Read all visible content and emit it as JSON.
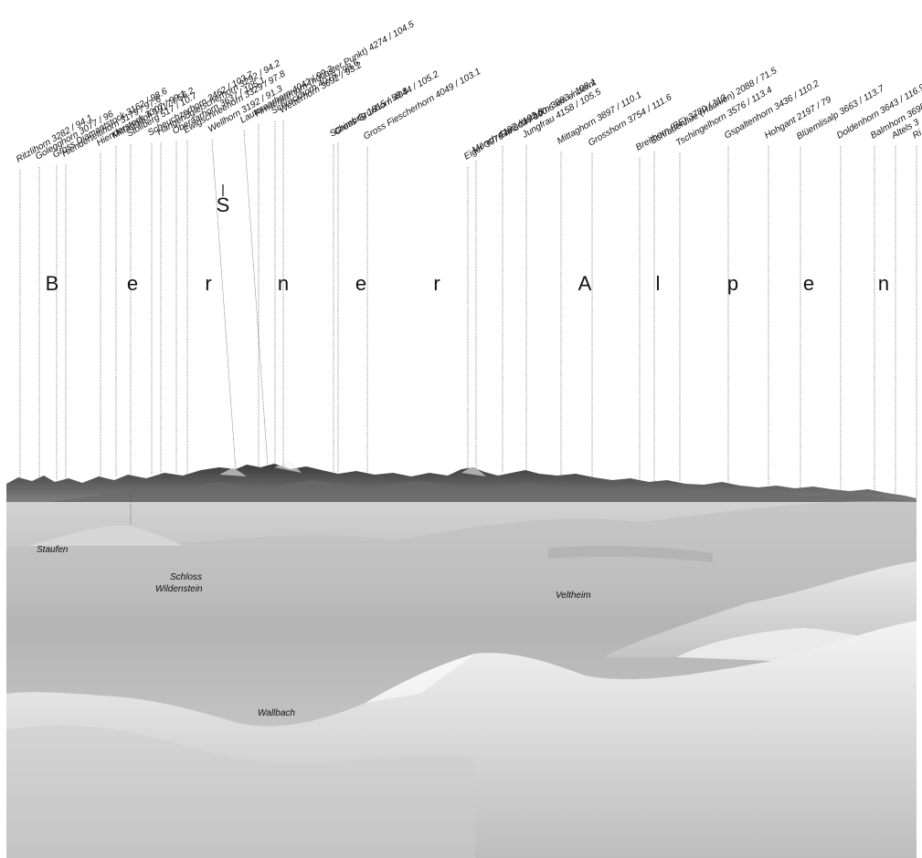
{
  "title_letters": [
    "B",
    "e",
    "r",
    "n",
    "e",
    "r",
    "A",
    "l",
    "p",
    "e",
    "n"
  ],
  "marker_letter": "S",
  "peaks": [
    {
      "name": "Ritzlihorn",
      "label": "Ritzlihorn  3282 / 94.1"
    },
    {
      "name": "Golegghorn",
      "label": "Golegghorn  3077 / 96"
    },
    {
      "name": "Gross Diamantstock",
      "label": "Gross Diamantstock  3162 / 98.6"
    },
    {
      "name": "Hienderteltihorn",
      "label": "Hienderteltihorn  3179 / 97.6"
    },
    {
      "name": "Hienderstock",
      "label": "Hienderstock  3307 / 99.1"
    },
    {
      "name": "Mittaggüpfi",
      "label": "Mittaggüpfi  1917 / 56.2"
    },
    {
      "name": "Stollberg",
      "label": "Stollberg  517 / 10.7"
    },
    {
      "name": "Scheuchzerhorn",
      "label": "Scheuchzerhorn  3462 / 103.7"
    },
    {
      "name": "Hangendgletscherhorn",
      "label": "Hangendgletscherhorn  3292 / 94.2"
    },
    {
      "name": "Oberaarhorn",
      "label": "Oberaarhorn  3637 / 105.1"
    },
    {
      "name": "Ewigschneehorn",
      "label": "Ewigschneehorn  3329 / 97.8"
    },
    {
      "name": "Wellhorn",
      "label": "Wellhorn  3192 / 91.3"
    },
    {
      "name": "Lauteraarhorn",
      "label": "Lauteraarhorn  4042 / 99.3"
    },
    {
      "name": "Finsteraarhorn",
      "label": "Finsteraarhorn (höchster Punkt)  4274 / 104.5"
    },
    {
      "name": "Schreckhorn",
      "label": "Schreckhorn  4078 / 98.6"
    },
    {
      "name": "Wetterhorn",
      "label": "Wetterhorn  3692 / 93.2"
    },
    {
      "name": "Schimbrig",
      "label": "Schimbrig  1815 / 59.8"
    },
    {
      "name": "Gross Grünhorn",
      "label": "Gross Grünhorn  4044 / 105.2"
    },
    {
      "name": "Gross Fiescherhorn",
      "label": "Gross Fiescherhorn  4049 / 103.1"
    },
    {
      "name": "Eiger",
      "label": "Eiger  3970 m ü M / 100.6 km entfernt"
    },
    {
      "name": "Mönch",
      "label": "Mönch  4107 / 102.8"
    },
    {
      "name": "Gletscherhorn",
      "label": "Gletscherhorn  3983 / 108.1"
    },
    {
      "name": "Jungfrau",
      "label": "Jungfrau  4158 / 105.5"
    },
    {
      "name": "Mittaghorn",
      "label": "Mittaghorn  3897 / 110.1"
    },
    {
      "name": "Grosshorn",
      "label": "Grosshorn  3754 / 111.6"
    },
    {
      "name": "Breithorn (BE)",
      "label": "Breithorn (BE)  3780 / 113"
    },
    {
      "name": "Schrattenfluе (Hächlen)",
      "label": "Schrattenflue (Hächlen)  2088 / 71.5"
    },
    {
      "name": "Tschingelhorn",
      "label": "Tschingelhorn  3576 / 113.4"
    },
    {
      "name": "Gspaltenhorn",
      "label": "Gspaltenhorn  3436 / 110.2"
    },
    {
      "name": "Hohgant",
      "label": "Hohgant  2197 / 79"
    },
    {
      "name": "Blüemlisalp",
      "label": "Blüemlisalp  3663 / 113.7"
    },
    {
      "name": "Doldenhorn",
      "label": "Doldenhorn  3643 / 116.9"
    },
    {
      "name": "Balmhorn",
      "label": "Balmhorn  3698"
    },
    {
      "name": "Altels",
      "label": "Altels  3"
    },
    {
      "name": "Rinderhorn",
      "label": "Ri"
    }
  ],
  "places": [
    {
      "name": "Staufen",
      "lines": [
        "Staufen"
      ]
    },
    {
      "name": "Schloss Wildenstein",
      "lines": [
        "Schloss",
        "Wildenstein"
      ]
    },
    {
      "name": "Veltheim",
      "lines": [
        "Veltheim"
      ]
    },
    {
      "name": "Wallbach",
      "lines": [
        "Wallbach"
      ]
    }
  ],
  "colors": {
    "terrain_light": "#e6e6e6",
    "terrain_mid": "#a9a9a9",
    "terrain_dark": "#4d4d4d",
    "sky": "#ffffff",
    "ink": "#111111"
  }
}
